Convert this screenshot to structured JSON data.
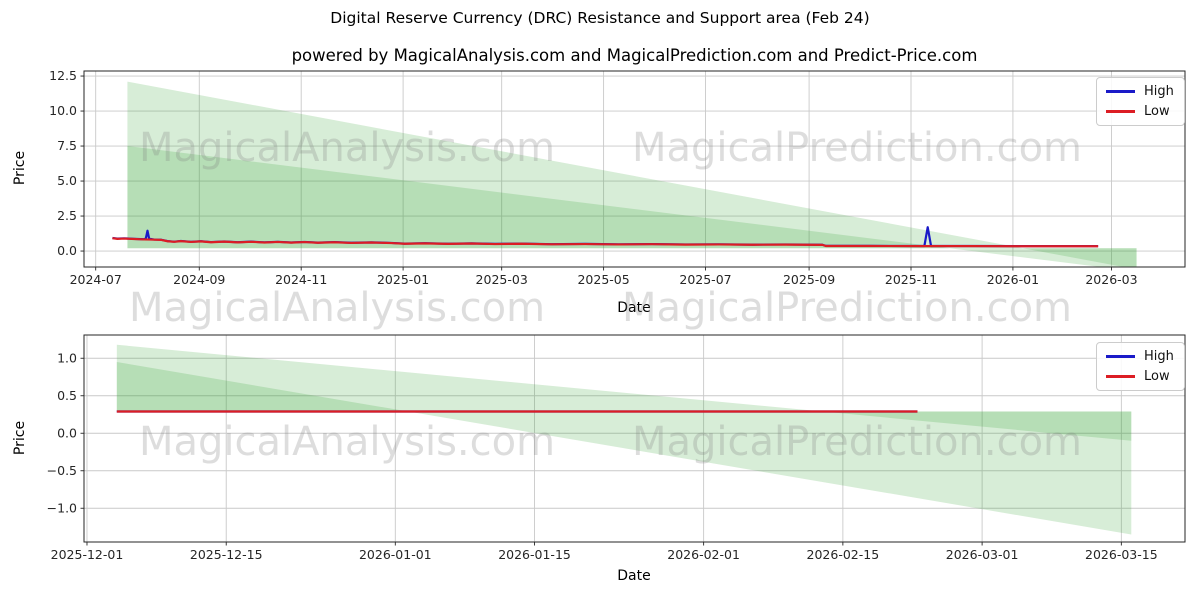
{
  "figure": {
    "title": "Digital Reserve Currency (DRC) Resistance and Support area (Feb 24)",
    "subtitle": "powered by MagicalAnalysis.com and MagicalPrediction.com and Predict-Price.com",
    "background": "#ffffff"
  },
  "colors": {
    "high_line": "#1a1ac8",
    "low_line": "#dc1d24",
    "area_green": "#2ca02c",
    "grid": "#c9c9c9",
    "axis": "#262626",
    "tick_text": "#262626",
    "watermark_gray": "#808080"
  },
  "legend": {
    "entries": [
      {
        "label": "High",
        "color_key": "high_line"
      },
      {
        "label": "Low",
        "color_key": "low_line"
      }
    ]
  },
  "watermarks": {
    "texts": [
      "MagicalAnalysis.com",
      "MagicalPrediction.com"
    ]
  },
  "chart_data": [
    {
      "id": "top-chart",
      "type": "line",
      "xlabel": "Date",
      "ylabel": "Price",
      "xlim": [
        0,
        659
      ],
      "ylim": [
        -1.14,
        12.86
      ],
      "grid": true,
      "legend_position": "upper right",
      "x_ticks": [
        {
          "d": 7,
          "label": "2024-07"
        },
        {
          "d": 69,
          "label": "2024-09"
        },
        {
          "d": 130,
          "label": "2024-11"
        },
        {
          "d": 191,
          "label": "2025-01"
        },
        {
          "d": 250,
          "label": "2025-03"
        },
        {
          "d": 311,
          "label": "2025-05"
        },
        {
          "d": 372,
          "label": "2025-07"
        },
        {
          "d": 434,
          "label": "2025-09"
        },
        {
          "d": 495,
          "label": "2025-11"
        },
        {
          "d": 556,
          "label": "2026-01"
        },
        {
          "d": 615,
          "label": "2026-03"
        }
      ],
      "y_ticks": [
        {
          "v": 0,
          "label": "0.0"
        },
        {
          "v": 2.5,
          "label": "2.5"
        },
        {
          "v": 5,
          "label": "5.0"
        },
        {
          "v": 7.5,
          "label": "7.5"
        },
        {
          "v": 10,
          "label": "10.0"
        },
        {
          "v": 12.5,
          "label": "12.5"
        }
      ],
      "areas": [
        {
          "name": "resistance-support-area-wide",
          "start": {
            "d": 26,
            "v": 12.1
          },
          "end": {
            "d": 630,
            "v": -1.31
          },
          "base_v": 0.2,
          "opacity": 0.19
        },
        {
          "name": "resistance-support-area-narrow",
          "start": {
            "d": 26,
            "v": 7.5
          },
          "end": {
            "d": 630,
            "v": -1.46
          },
          "base_v": 0.2,
          "opacity": 0.19
        }
      ],
      "series": [
        {
          "name": "High",
          "color_key": "high_line",
          "points": [
            [
              17,
              0.93
            ],
            [
              20,
              0.89
            ],
            [
              24,
              0.91
            ],
            [
              30,
              0.87
            ],
            [
              36,
              0.84
            ],
            [
              37,
              0.9
            ],
            [
              38,
              1.45
            ],
            [
              39,
              0.88
            ],
            [
              42,
              0.82
            ],
            [
              46,
              0.81
            ],
            [
              50,
              0.71
            ],
            [
              54,
              0.67
            ],
            [
              58,
              0.72
            ],
            [
              64,
              0.66
            ],
            [
              70,
              0.7
            ],
            [
              76,
              0.64
            ],
            [
              84,
              0.68
            ],
            [
              92,
              0.63
            ],
            [
              100,
              0.67
            ],
            [
              108,
              0.62
            ],
            [
              116,
              0.66
            ],
            [
              124,
              0.61
            ],
            [
              132,
              0.65
            ],
            [
              140,
              0.6
            ],
            [
              150,
              0.64
            ],
            [
              160,
              0.59
            ],
            [
              172,
              0.62
            ],
            [
              184,
              0.58
            ],
            [
              192,
              0.53
            ],
            [
              204,
              0.56
            ],
            [
              218,
              0.52
            ],
            [
              232,
              0.55
            ],
            [
              246,
              0.51
            ],
            [
              262,
              0.53
            ],
            [
              280,
              0.49
            ],
            [
              300,
              0.51
            ],
            [
              320,
              0.48
            ],
            [
              340,
              0.5
            ],
            [
              360,
              0.47
            ],
            [
              380,
              0.48
            ],
            [
              400,
              0.46
            ],
            [
              420,
              0.47
            ],
            [
              442,
              0.45
            ],
            [
              444,
              0.37
            ],
            [
              470,
              0.37
            ],
            [
              500,
              0.36
            ],
            [
              503,
              0.36
            ],
            [
              505,
              1.7
            ],
            [
              507,
              0.36
            ],
            [
              530,
              0.36
            ],
            [
              560,
              0.35
            ],
            [
              590,
              0.35
            ],
            [
              607,
              0.35
            ]
          ]
        },
        {
          "name": "Low",
          "color_key": "low_line",
          "points": [
            [
              17,
              0.92
            ],
            [
              20,
              0.87
            ],
            [
              24,
              0.89
            ],
            [
              30,
              0.86
            ],
            [
              36,
              0.83
            ],
            [
              40,
              0.82
            ],
            [
              46,
              0.8
            ],
            [
              50,
              0.7
            ],
            [
              54,
              0.66
            ],
            [
              58,
              0.71
            ],
            [
              64,
              0.65
            ],
            [
              70,
              0.69
            ],
            [
              76,
              0.63
            ],
            [
              84,
              0.67
            ],
            [
              92,
              0.62
            ],
            [
              100,
              0.66
            ],
            [
              108,
              0.61
            ],
            [
              116,
              0.65
            ],
            [
              124,
              0.6
            ],
            [
              132,
              0.64
            ],
            [
              140,
              0.59
            ],
            [
              150,
              0.63
            ],
            [
              160,
              0.58
            ],
            [
              172,
              0.61
            ],
            [
              184,
              0.57
            ],
            [
              192,
              0.52
            ],
            [
              204,
              0.55
            ],
            [
              218,
              0.51
            ],
            [
              232,
              0.54
            ],
            [
              246,
              0.5
            ],
            [
              262,
              0.52
            ],
            [
              280,
              0.48
            ],
            [
              300,
              0.5
            ],
            [
              320,
              0.47
            ],
            [
              340,
              0.49
            ],
            [
              360,
              0.46
            ],
            [
              380,
              0.47
            ],
            [
              400,
              0.45
            ],
            [
              420,
              0.46
            ],
            [
              442,
              0.44
            ],
            [
              444,
              0.36
            ],
            [
              470,
              0.36
            ],
            [
              500,
              0.35
            ],
            [
              530,
              0.35
            ],
            [
              560,
              0.34
            ],
            [
              590,
              0.34
            ],
            [
              607,
              0.34
            ]
          ]
        }
      ]
    },
    {
      "id": "bottom-chart",
      "type": "line",
      "xlabel": "Date",
      "ylabel": "Price",
      "xlim": [
        -0.3,
        110.4
      ],
      "ylim": [
        -1.45,
        1.31
      ],
      "grid": true,
      "legend_position": "upper right",
      "x_ticks": [
        {
          "d": 0,
          "label": "2025-12-01"
        },
        {
          "d": 14,
          "label": "2025-12-15"
        },
        {
          "d": 31,
          "label": "2026-01-01"
        },
        {
          "d": 45,
          "label": "2026-01-15"
        },
        {
          "d": 62,
          "label": "2026-02-01"
        },
        {
          "d": 76,
          "label": "2026-02-15"
        },
        {
          "d": 90,
          "label": "2026-03-01"
        },
        {
          "d": 104,
          "label": "2026-03-15"
        }
      ],
      "y_ticks": [
        {
          "v": 1.0,
          "label": "1.0"
        },
        {
          "v": 0.5,
          "label": "0.5"
        },
        {
          "v": 0.0,
          "label": "0.0"
        },
        {
          "v": -0.5,
          "label": "−0.5"
        },
        {
          "v": -1.0,
          "label": "−1.0"
        }
      ],
      "areas": [
        {
          "name": "resistance-support-area-wide",
          "start": {
            "d": 3,
            "v": 1.18
          },
          "end": {
            "d": 105,
            "v": -0.1
          },
          "base_v": 0.29,
          "opacity": 0.19
        },
        {
          "name": "resistance-support-area-narrow",
          "start": {
            "d": 3,
            "v": 0.95
          },
          "end": {
            "d": 105,
            "v": -1.35
          },
          "base_v": 0.29,
          "opacity": 0.19
        }
      ],
      "series": [
        {
          "name": "High",
          "color_key": "high_line",
          "points": [
            [
              3,
              0.29
            ],
            [
              83.5,
              0.29
            ]
          ]
        },
        {
          "name": "Low",
          "color_key": "low_line",
          "points": [
            [
              3,
              0.29
            ],
            [
              83.5,
              0.29
            ]
          ]
        }
      ]
    }
  ]
}
